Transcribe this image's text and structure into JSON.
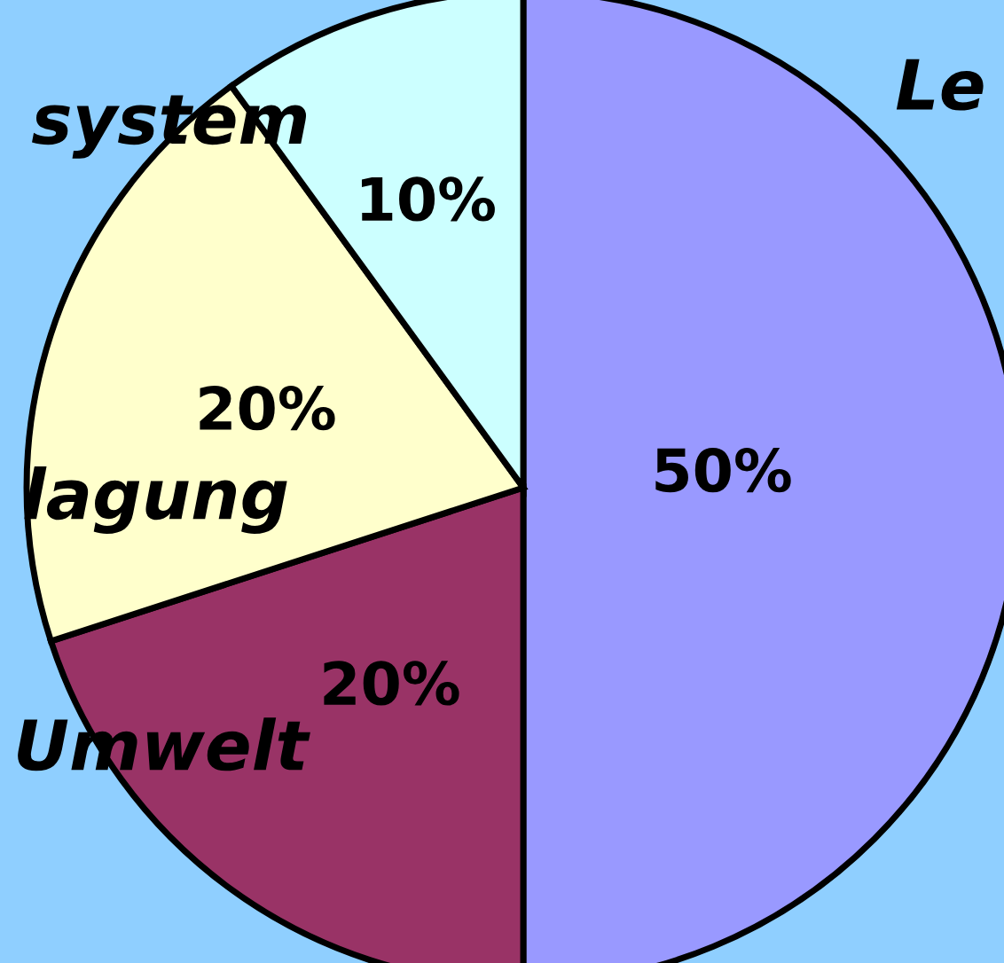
{
  "chart_data": {
    "type": "pie",
    "categories": [
      "Le",
      "Umwelt",
      "lagung",
      "system"
    ],
    "values": [
      50,
      20,
      20,
      10
    ],
    "colors": [
      "#9999ff",
      "#993366",
      "#ffffcc",
      "#ccffff"
    ],
    "value_labels": [
      "50%",
      "20%",
      "20%",
      "10%"
    ],
    "legend": false
  }
}
